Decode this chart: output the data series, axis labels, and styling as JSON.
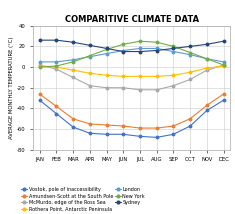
{
  "title": "COMPARITIVE CLIMATE DATA",
  "months": [
    "JAN",
    "FEB",
    "MAR",
    "APR",
    "MAY",
    "JUN",
    "JUL",
    "AUG",
    "SEP",
    "OCT",
    "NOV",
    "DEC"
  ],
  "ylabel": "AVERAGE MONTHLY TEMPERATURE (°C)",
  "ylim": [
    -80,
    40
  ],
  "yticks": [
    -80,
    -60,
    -40,
    -20,
    0,
    20,
    40
  ],
  "series": [
    {
      "name": "Vostok, pole of inaccessibility",
      "color": "#4472C4",
      "marker": "o",
      "values": [
        -32,
        -45,
        -58,
        -64,
        -65,
        -65,
        -67,
        -68,
        -65,
        -57,
        -42,
        -32
      ]
    },
    {
      "name": "Amundsen-Scott at the South Pole",
      "color": "#ED7D31",
      "marker": "o",
      "values": [
        -26,
        -38,
        -50,
        -55,
        -56,
        -57,
        -59,
        -59,
        -57,
        -50,
        -37,
        -26
      ]
    },
    {
      "name": "McMurdo, edge of the Ross Sea",
      "color": "#A9A9A9",
      "marker": "o",
      "values": [
        2,
        -2,
        -10,
        -18,
        -20,
        -20,
        -22,
        -22,
        -18,
        -12,
        -3,
        2
      ]
    },
    {
      "name": "Rothera Point, Antarctic Peninsula",
      "color": "#FFC000",
      "marker": "o",
      "values": [
        1,
        0,
        -3,
        -6,
        -8,
        -9,
        -9,
        -9,
        -8,
        -5,
        -1,
        1
      ]
    },
    {
      "name": "London",
      "color": "#5B9BD5",
      "marker": "o",
      "values": [
        5,
        5,
        7,
        10,
        13,
        16,
        18,
        18,
        15,
        12,
        8,
        5
      ]
    },
    {
      "name": "New York",
      "color": "#70AD47",
      "marker": "o",
      "values": [
        0,
        1,
        5,
        11,
        17,
        22,
        25,
        24,
        20,
        14,
        8,
        2
      ]
    },
    {
      "name": "Sydney",
      "color": "#264478",
      "marker": "o",
      "values": [
        26,
        26,
        24,
        21,
        18,
        15,
        15,
        16,
        18,
        20,
        22,
        25
      ]
    }
  ],
  "background_color": "#FFFFFF",
  "grid_color": "#CCCCCC",
  "title_fontsize": 6.0,
  "legend_fontsize": 3.5,
  "axis_fontsize": 3.8,
  "tick_fontsize": 3.8
}
